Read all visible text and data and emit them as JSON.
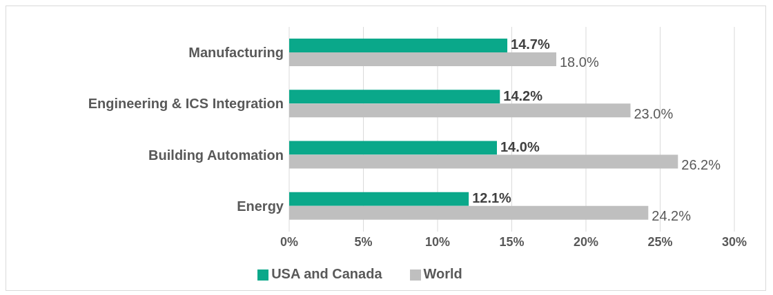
{
  "chart_data": {
    "type": "bar",
    "orientation": "horizontal",
    "categories": [
      "Manufacturing",
      "Engineering & ICS Integration",
      "Building Automation",
      "Energy"
    ],
    "series": [
      {
        "name": "USA and Canada",
        "color": "#0aa88a",
        "values": [
          14.7,
          14.2,
          14.0,
          12.1
        ],
        "value_labels": [
          "14.7%",
          "14.2%",
          "14.0%",
          "12.1%"
        ]
      },
      {
        "name": "World",
        "color": "#bfbfbf",
        "values": [
          18.0,
          23.0,
          26.2,
          24.2
        ],
        "value_labels": [
          "18.0%",
          "23.0%",
          "26.2%",
          "24.2%"
        ]
      }
    ],
    "xlim": [
      0,
      30
    ],
    "xticks": [
      {
        "value": 0,
        "label": "0%"
      },
      {
        "value": 5,
        "label": "5%"
      },
      {
        "value": 10,
        "label": "10%"
      },
      {
        "value": 15,
        "label": "15%"
      },
      {
        "value": 20,
        "label": "20%"
      },
      {
        "value": 25,
        "label": "25%"
      },
      {
        "value": 30,
        "label": "30%"
      }
    ],
    "grid": "x",
    "legend": "bottom"
  }
}
